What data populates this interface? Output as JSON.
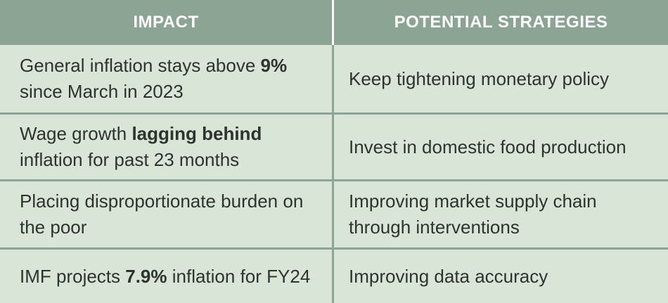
{
  "colors": {
    "header_bg": "#8ca494",
    "cell_bg": "#d8e5d7",
    "row_divider": "#8ca494",
    "header_divider": "#fdfefd",
    "header_text": "#ffffff",
    "body_text": "#2f332f"
  },
  "table": {
    "headers": [
      "IMPACT",
      "POTENTIAL STRATEGIES"
    ],
    "rows": [
      {
        "impact": [
          {
            "text": "General inflation stays above ",
            "bold": false
          },
          {
            "text": "9%",
            "bold": true
          },
          {
            "text": " since March in 2023",
            "bold": false
          }
        ],
        "strategy": [
          {
            "text": "Keep tightening monetary policy",
            "bold": false
          }
        ]
      },
      {
        "impact": [
          {
            "text": "Wage growth ",
            "bold": false
          },
          {
            "text": "lagging behind",
            "bold": true
          },
          {
            "text": " inflation for past 23 months",
            "bold": false
          }
        ],
        "strategy": [
          {
            "text": "Invest in domestic food production",
            "bold": false
          }
        ]
      },
      {
        "impact": [
          {
            "text": "Placing disproportionate burden on the poor",
            "bold": false
          }
        ],
        "strategy": [
          {
            "text": "Improving market supply chain through interventions",
            "bold": false
          }
        ]
      },
      {
        "impact": [
          {
            "text": "IMF projects ",
            "bold": false
          },
          {
            "text": "7.9%",
            "bold": true
          },
          {
            "text": " inflation for FY24",
            "bold": false
          }
        ],
        "strategy": [
          {
            "text": "Improving data accuracy",
            "bold": false
          }
        ]
      }
    ]
  },
  "chart_data": {
    "type": "table",
    "columns": [
      "IMPACT",
      "POTENTIAL STRATEGIES"
    ],
    "rows": [
      [
        "General inflation stays above 9% since March in 2023",
        "Keep tightening monetary policy"
      ],
      [
        "Wage growth lagging behind inflation for past 23 months",
        "Invest in domestic food production"
      ],
      [
        "Placing disproportionate burden on the poor",
        "Improving market supply chain through interventions"
      ],
      [
        "IMF projects 7.9% inflation for FY24",
        "Improving data accuracy"
      ]
    ],
    "title": "",
    "legend": "none",
    "grid": "on"
  }
}
